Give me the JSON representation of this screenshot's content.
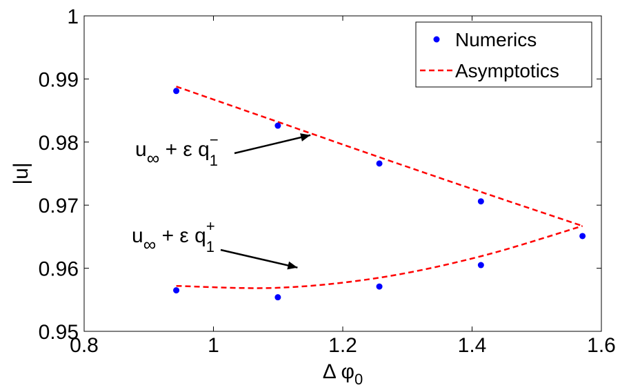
{
  "chart_data": {
    "type": "scatter",
    "xlabel": "Δ φ",
    "xlabel_sub": "0",
    "ylabel": "|u|",
    "xlim": [
      0.8,
      1.6
    ],
    "ylim": [
      0.95,
      1.0
    ],
    "xticks": [
      "0.8",
      "1",
      "1.2",
      "1.4",
      "1.6"
    ],
    "yticks": [
      "0.95",
      "0.96",
      "0.97",
      "0.98",
      "0.99",
      "1"
    ],
    "grid": false,
    "legend_position": "top-right",
    "legend": [
      "Numerics",
      "Asymptotics"
    ],
    "series": [
      {
        "name": "Numerics",
        "style": "markers",
        "color": "#0000ff",
        "points": [
          [
            0.9425,
            0.9881
          ],
          [
            1.0996,
            0.9826
          ],
          [
            1.2566,
            0.9766
          ],
          [
            1.4137,
            0.9706
          ],
          [
            1.5708,
            0.9651
          ],
          [
            0.9425,
            0.9565
          ],
          [
            1.0996,
            0.9554
          ],
          [
            1.2566,
            0.9571
          ],
          [
            1.4137,
            0.9605
          ]
        ]
      },
      {
        "name": "Asymptotics",
        "style": "dashed",
        "color": "#ff0000",
        "upper": [
          [
            0.9425,
            0.9888
          ],
          [
            1.0996,
            0.9832
          ],
          [
            1.2566,
            0.9776
          ],
          [
            1.4137,
            0.9721
          ],
          [
            1.5708,
            0.9667
          ]
        ],
        "lower": [
          [
            0.9425,
            0.9572
          ],
          [
            1.0996,
            0.9569
          ],
          [
            1.2566,
            0.9585
          ],
          [
            1.4137,
            0.9619
          ],
          [
            1.5708,
            0.9667
          ]
        ]
      }
    ],
    "annotations": [
      {
        "id": "minus",
        "base": "u",
        "sub1": "∞",
        "mid": " + ε q",
        "sup": "−",
        "sub2": "1",
        "arrow_to": [
          1.15,
          0.9811
        ]
      },
      {
        "id": "plus",
        "base": "u",
        "sub1": "∞",
        "mid": " + ε q",
        "sup": "+",
        "sub2": "1",
        "arrow_to": [
          1.13,
          0.9601
        ]
      }
    ]
  }
}
